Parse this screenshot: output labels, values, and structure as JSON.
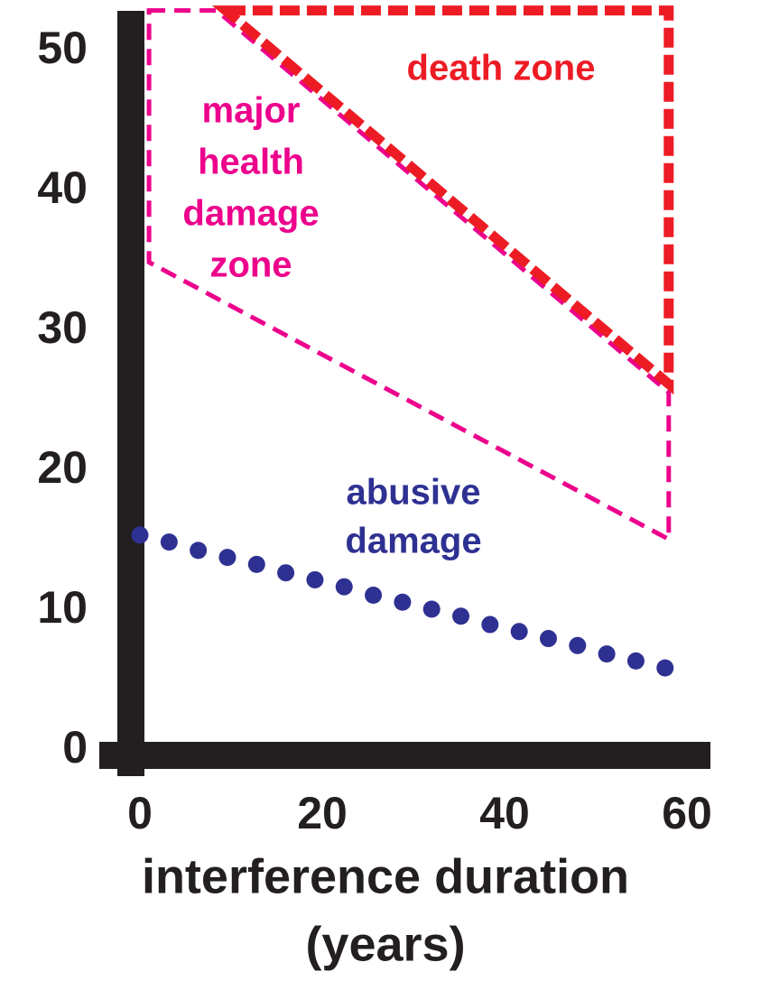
{
  "chart_data": {
    "type": "scatter",
    "xlabel": [
      "interference  duration",
      "(years)"
    ],
    "xlim": [
      0,
      60
    ],
    "ylim": [
      0,
      50
    ],
    "xticks": [
      0,
      20,
      40,
      60
    ],
    "yticks": [
      0,
      10,
      20,
      30,
      40,
      50
    ],
    "series": [
      {
        "color": "#2e3192",
        "x": [
          0,
          3.2,
          6.4,
          9.6,
          12.8,
          16,
          19.2,
          22.4,
          25.6,
          28.8,
          32,
          35.2,
          38.4,
          41.6,
          44.8,
          48,
          51.2,
          54.4,
          57.6
        ],
        "values": [
          15.3,
          14.8,
          14.2,
          13.7,
          13.2,
          12.6,
          12.1,
          11.6,
          11.0,
          10.5,
          10.0,
          9.5,
          8.9,
          8.4,
          7.9,
          7.4,
          6.8,
          6.3,
          5.8
        ]
      }
    ],
    "regions": [
      {
        "label": [
          "major",
          "health",
          "damage",
          "zone"
        ],
        "color": "#ec008c",
        "points": [
          [
            1,
            52.8
          ],
          [
            8.4,
            52.8
          ],
          [
            58,
            25.5
          ],
          [
            58,
            15
          ],
          [
            1,
            34.8
          ]
        ]
      },
      {
        "label": [
          "death  zone"
        ],
        "color": "#ed1c24",
        "points": [
          [
            9.4,
            52.8
          ],
          [
            58,
            52.8
          ],
          [
            58,
            26.1
          ]
        ]
      }
    ],
    "annotations": [
      {
        "text": [
          "abusive",
          "damage"
        ],
        "color": "#2e3192"
      }
    ]
  }
}
